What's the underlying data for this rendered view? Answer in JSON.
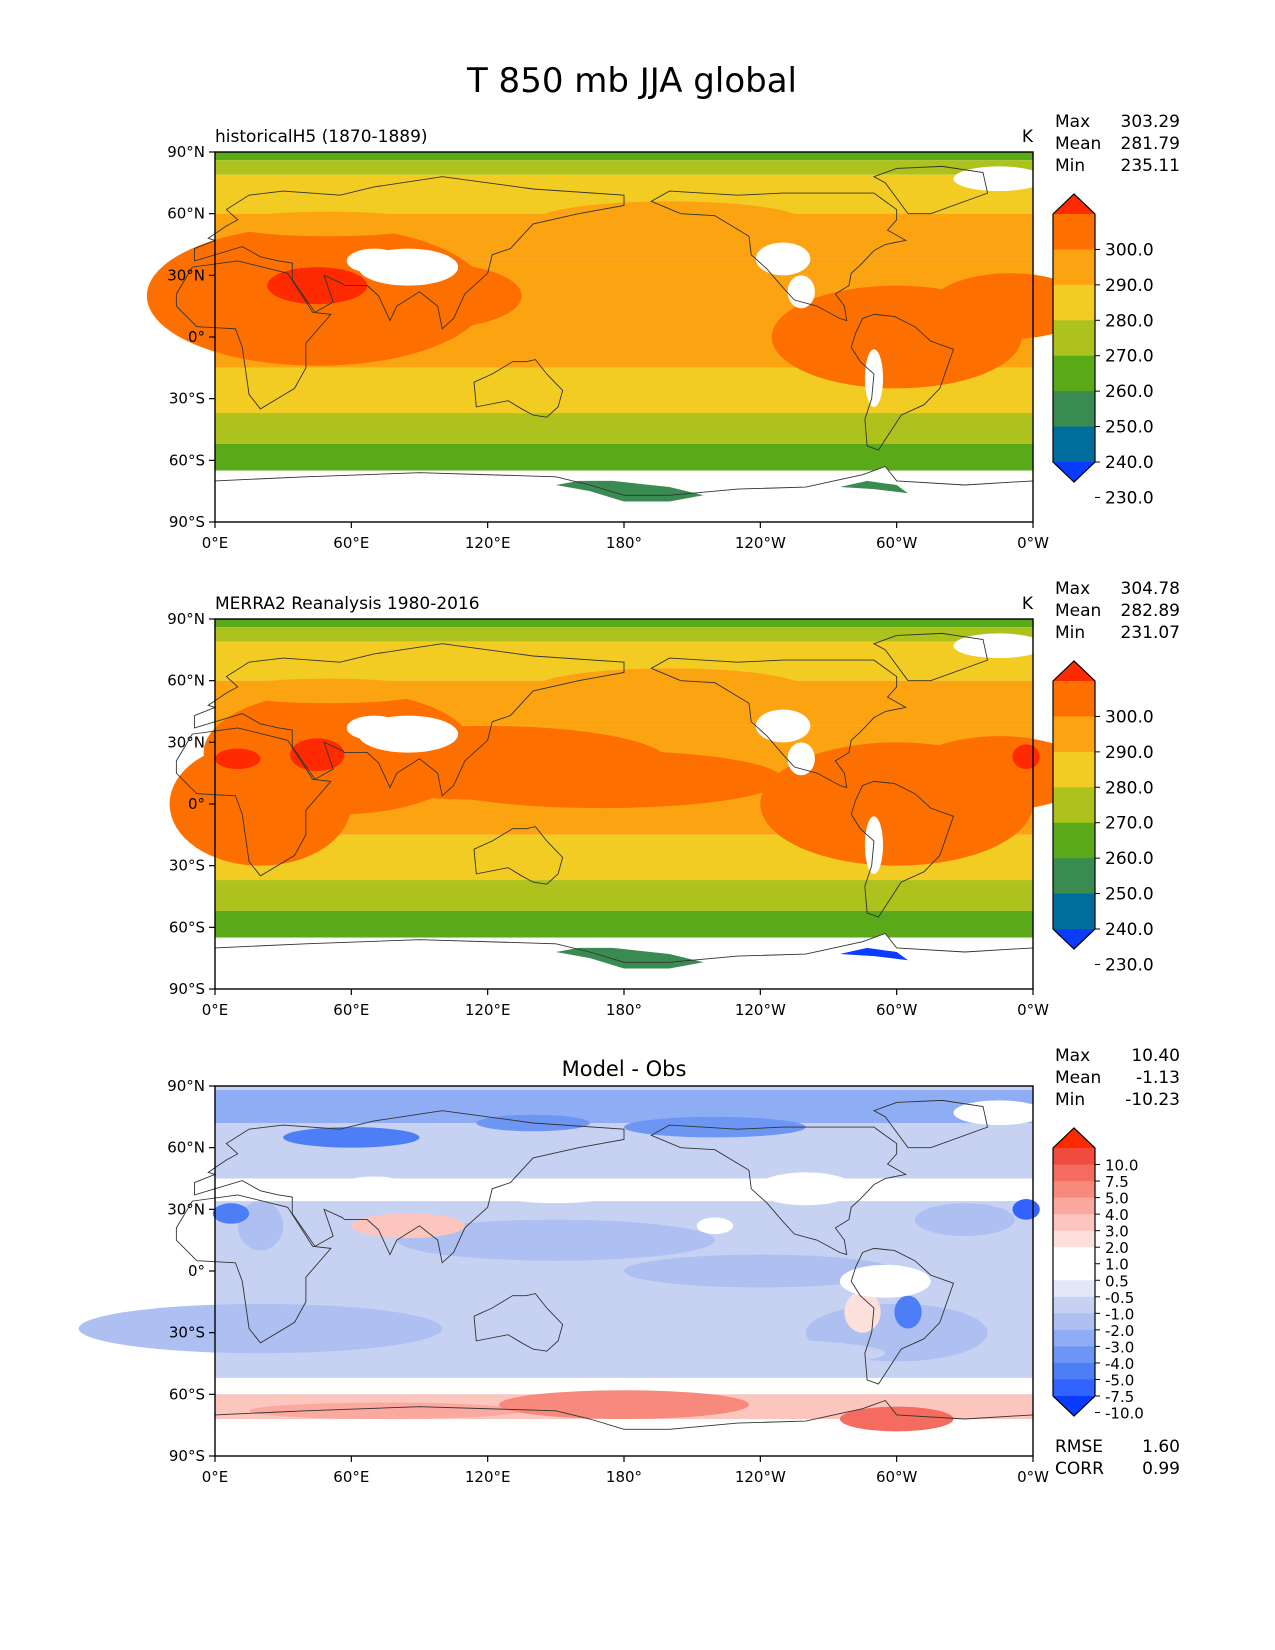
{
  "figure_title": "T 850 mb JJA global",
  "colors": {
    "abs_levels": [
      "#0a3cff",
      "#006e9c",
      "#3a8b51",
      "#5aa918",
      "#adc21c",
      "#f2cc22",
      "#fca312",
      "#fd7000",
      "#ff2a00"
    ],
    "diff_levels": [
      "#0a3cff",
      "#3262ff",
      "#4e7ef6",
      "#6d96f4",
      "#8fadf4",
      "#adc0f1",
      "#c7d2f3",
      "#e3e8f8",
      "#ffffff",
      "#ffffff",
      "#fde0dc",
      "#fcc5be",
      "#fba89e",
      "#f78a7d",
      "#f46c5f",
      "#f04b3c",
      "#ff2a00"
    ],
    "land_missing": "#ffffff",
    "coast": "#333333"
  },
  "axes": {
    "x_ticks": [
      "0°E",
      "60°E",
      "120°E",
      "180°",
      "120°W",
      "60°W",
      "0°W"
    ],
    "y_ticks": [
      "90°N",
      "60°N",
      "30°N",
      "0°",
      "30°S",
      "60°S",
      "90°S"
    ]
  },
  "chart_data": [
    {
      "type": "heatmap",
      "panel": "model",
      "left_title": "historicalH5 (1870-1889)",
      "center_title": "",
      "units": "K",
      "stats": [
        {
          "label": "Max",
          "value": "303.29"
        },
        {
          "label": "Mean",
          "value": "281.79"
        },
        {
          "label": "Min",
          "value": "235.11"
        }
      ],
      "colorbar_labels": [
        "300.0",
        "290.0",
        "280.0",
        "270.0",
        "260.0",
        "250.0",
        "240.0",
        "230.0"
      ],
      "xlim": [
        0,
        360
      ],
      "ylim": [
        -90,
        90
      ]
    },
    {
      "type": "heatmap",
      "panel": "obs",
      "left_title": "MERRA2 Reanalysis 1980-2016",
      "center_title": "",
      "units": "K",
      "stats": [
        {
          "label": "Max",
          "value": "304.78"
        },
        {
          "label": "Mean",
          "value": "282.89"
        },
        {
          "label": "Min",
          "value": "231.07"
        }
      ],
      "colorbar_labels": [
        "300.0",
        "290.0",
        "280.0",
        "270.0",
        "260.0",
        "250.0",
        "240.0",
        "230.0"
      ],
      "xlim": [
        0,
        360
      ],
      "ylim": [
        -90,
        90
      ]
    },
    {
      "type": "heatmap",
      "panel": "diff",
      "left_title": "",
      "center_title": "Model - Obs",
      "units": "",
      "stats": [
        {
          "label": "Max",
          "value": "10.40"
        },
        {
          "label": "Mean",
          "value": "-1.13"
        },
        {
          "label": "Min",
          "value": "-10.23"
        }
      ],
      "colorbar_labels": [
        "10.0",
        "7.5",
        "5.0",
        "4.0",
        "3.0",
        "2.0",
        "1.0",
        "0.5",
        "-0.5",
        "-1.0",
        "-2.0",
        "-3.0",
        "-4.0",
        "-5.0",
        "-7.5",
        "-10.0"
      ],
      "metrics": [
        {
          "label": "RMSE",
          "value": "1.60"
        },
        {
          "label": "CORR",
          "value": "0.99"
        }
      ],
      "xlim": [
        0,
        360
      ],
      "ylim": [
        -90,
        90
      ]
    }
  ]
}
